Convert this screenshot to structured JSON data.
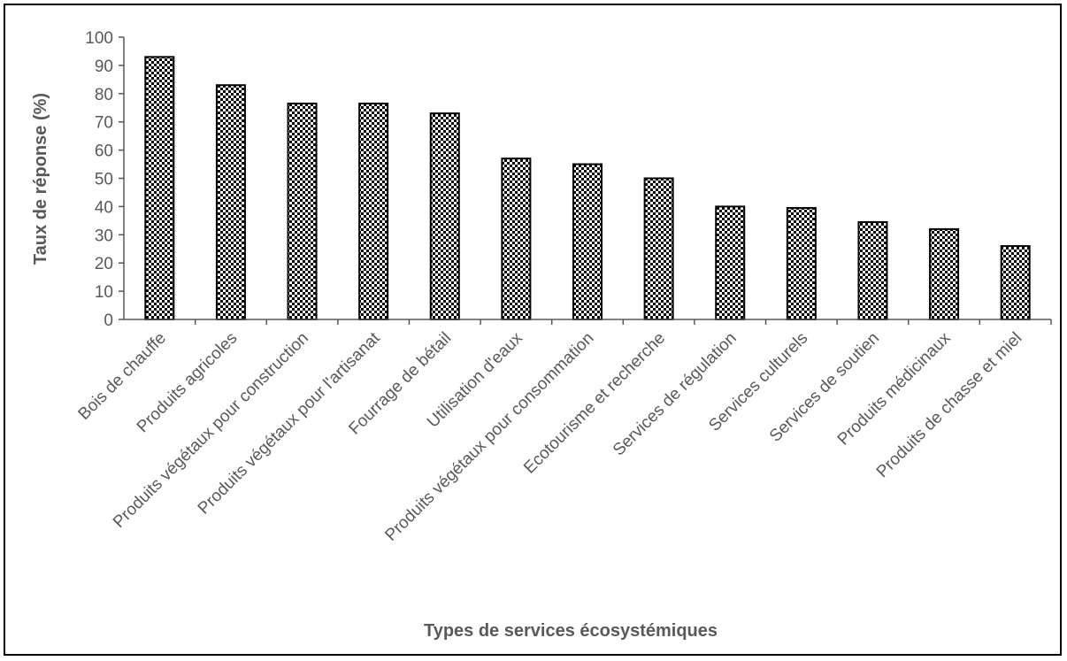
{
  "chart_data": {
    "type": "bar",
    "title": "",
    "xlabel": "Types de services écosystémiques",
    "ylabel": "Taux de réponse (%)",
    "ylim": [
      0,
      100
    ],
    "yticks": [
      0,
      10,
      20,
      30,
      40,
      50,
      60,
      70,
      80,
      90,
      100
    ],
    "grid": false,
    "legend": "none",
    "bar_fill": "checkerboard",
    "colors": {
      "bar_dark": "#000000",
      "bar_light": "#ffffff",
      "axis": "#595959",
      "text": "#595959"
    },
    "categories": [
      "Bois de chauffe",
      "Produits agricoles",
      "Produits végétaux pour construction",
      "Produits végétaux pour l'artisanat",
      "Fourrage de bétail",
      "Utilisation d'eaux",
      "Produits végétaux pour consommation",
      "Ecotourisme et recherche",
      "Services de régulation",
      "Services culturels",
      "Services de soutien",
      "Produits médicinaux",
      "Produits de chasse et miel"
    ],
    "values": [
      93,
      83,
      76.5,
      76.5,
      73,
      57,
      55,
      50,
      40,
      39.5,
      34.5,
      32,
      26
    ]
  }
}
